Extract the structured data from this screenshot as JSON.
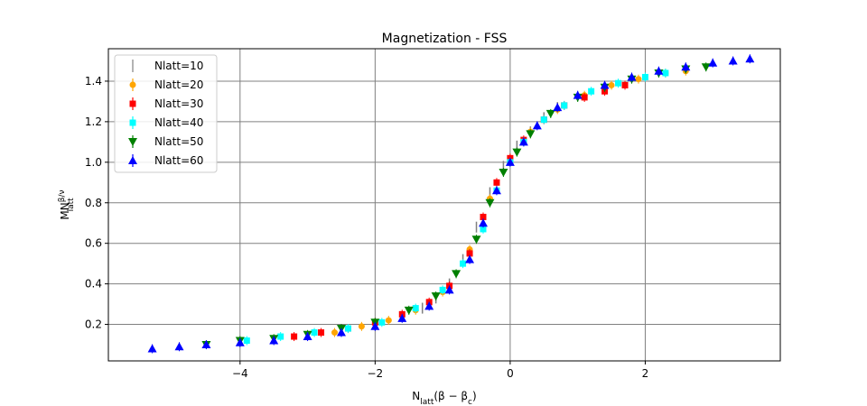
{
  "chart_data": {
    "type": "scatter",
    "title": "Magnetization - FSS",
    "xlabel_parts": {
      "pre": "N",
      "sub": "latt",
      "post": "(β − β",
      "sub2": "c",
      "close": ")"
    },
    "ylabel_parts": {
      "pre": "MN",
      "sup": "β/ν",
      "sub": "latt"
    },
    "xlim": [
      -5.95,
      4.0
    ],
    "ylim": [
      0.02,
      1.56
    ],
    "xticks": [
      -4,
      -2,
      0,
      2
    ],
    "xtick_labels": [
      "−4",
      "−2",
      "0",
      "2"
    ],
    "yticks": [
      0.2,
      0.4,
      0.6,
      0.8,
      1.0,
      1.2,
      1.4
    ],
    "ytick_labels": [
      "0.2",
      "0.4",
      "0.6",
      "0.8",
      "1.0",
      "1.2",
      "1.4"
    ],
    "grid": true,
    "legend_position": "top-left",
    "colors": {
      "grid": "#808080"
    },
    "series": [
      {
        "name": "Nlatt=10",
        "color": "#808080",
        "marker": "vline",
        "x": [
          -1.3,
          -1.1,
          -0.9,
          -0.7,
          -0.5,
          -0.3,
          -0.1,
          0.1,
          0.3,
          0.5,
          0.7
        ],
        "y": [
          0.28,
          0.33,
          0.4,
          0.52,
          0.68,
          0.85,
          0.98,
          1.08,
          1.15,
          1.22,
          1.27
        ]
      },
      {
        "name": "Nlatt=20",
        "color": "#ffa500",
        "marker": "circle",
        "x": [
          -2.6,
          -2.2,
          -1.8,
          -1.4,
          -1.0,
          -0.6,
          -0.3,
          0.0,
          0.3,
          0.7,
          1.1,
          1.5,
          1.9,
          2.3,
          2.6
        ],
        "y": [
          0.16,
          0.19,
          0.22,
          0.27,
          0.36,
          0.57,
          0.82,
          1.02,
          1.15,
          1.26,
          1.33,
          1.38,
          1.41,
          1.44,
          1.45
        ]
      },
      {
        "name": "Nlatt=30",
        "color": "#ff0000",
        "marker": "square",
        "x": [
          -3.2,
          -2.8,
          -2.4,
          -2.0,
          -1.6,
          -1.2,
          -0.9,
          -0.6,
          -0.4,
          -0.2,
          0.0,
          0.2,
          0.5,
          0.8,
          1.1,
          1.4,
          1.7
        ],
        "y": [
          0.14,
          0.16,
          0.18,
          0.21,
          0.25,
          0.31,
          0.39,
          0.55,
          0.73,
          0.9,
          1.02,
          1.11,
          1.21,
          1.28,
          1.32,
          1.35,
          1.38
        ]
      },
      {
        "name": "Nlatt=40",
        "color": "#00ffff",
        "marker": "square",
        "x": [
          -3.9,
          -3.4,
          -2.9,
          -2.4,
          -1.9,
          -1.4,
          -1.0,
          -0.7,
          -0.4,
          -0.2,
          0.0,
          0.2,
          0.5,
          0.8,
          1.2,
          1.6,
          2.0,
          2.3
        ],
        "y": [
          0.12,
          0.14,
          0.16,
          0.18,
          0.21,
          0.28,
          0.37,
          0.5,
          0.67,
          0.86,
          1.0,
          1.1,
          1.21,
          1.28,
          1.35,
          1.39,
          1.42,
          1.44
        ]
      },
      {
        "name": "Nlatt=50",
        "color": "#008000",
        "marker": "triangle-down",
        "x": [
          -4.5,
          -4.0,
          -3.5,
          -3.0,
          -2.5,
          -2.0,
          -1.5,
          -1.1,
          -0.8,
          -0.5,
          -0.3,
          -0.1,
          0.1,
          0.3,
          0.6,
          1.0,
          1.4,
          1.8,
          2.2,
          2.6,
          2.9
        ],
        "y": [
          0.1,
          0.12,
          0.13,
          0.15,
          0.18,
          0.21,
          0.27,
          0.34,
          0.45,
          0.62,
          0.8,
          0.95,
          1.05,
          1.14,
          1.24,
          1.32,
          1.37,
          1.41,
          1.44,
          1.46,
          1.47
        ]
      },
      {
        "name": "Nlatt=60",
        "color": "#0000ff",
        "marker": "triangle-up",
        "x": [
          -5.3,
          -4.9,
          -4.5,
          -4.0,
          -3.5,
          -3.0,
          -2.5,
          -2.0,
          -1.6,
          -1.2,
          -0.9,
          -0.6,
          -0.4,
          -0.2,
          0.0,
          0.2,
          0.4,
          0.7,
          1.0,
          1.4,
          1.8,
          2.2,
          2.6,
          3.0,
          3.3,
          3.55
        ],
        "y": [
          0.08,
          0.09,
          0.1,
          0.11,
          0.12,
          0.14,
          0.16,
          0.19,
          0.23,
          0.29,
          0.37,
          0.52,
          0.7,
          0.86,
          1.0,
          1.1,
          1.18,
          1.27,
          1.33,
          1.38,
          1.42,
          1.45,
          1.47,
          1.49,
          1.5,
          1.51
        ]
      }
    ]
  }
}
